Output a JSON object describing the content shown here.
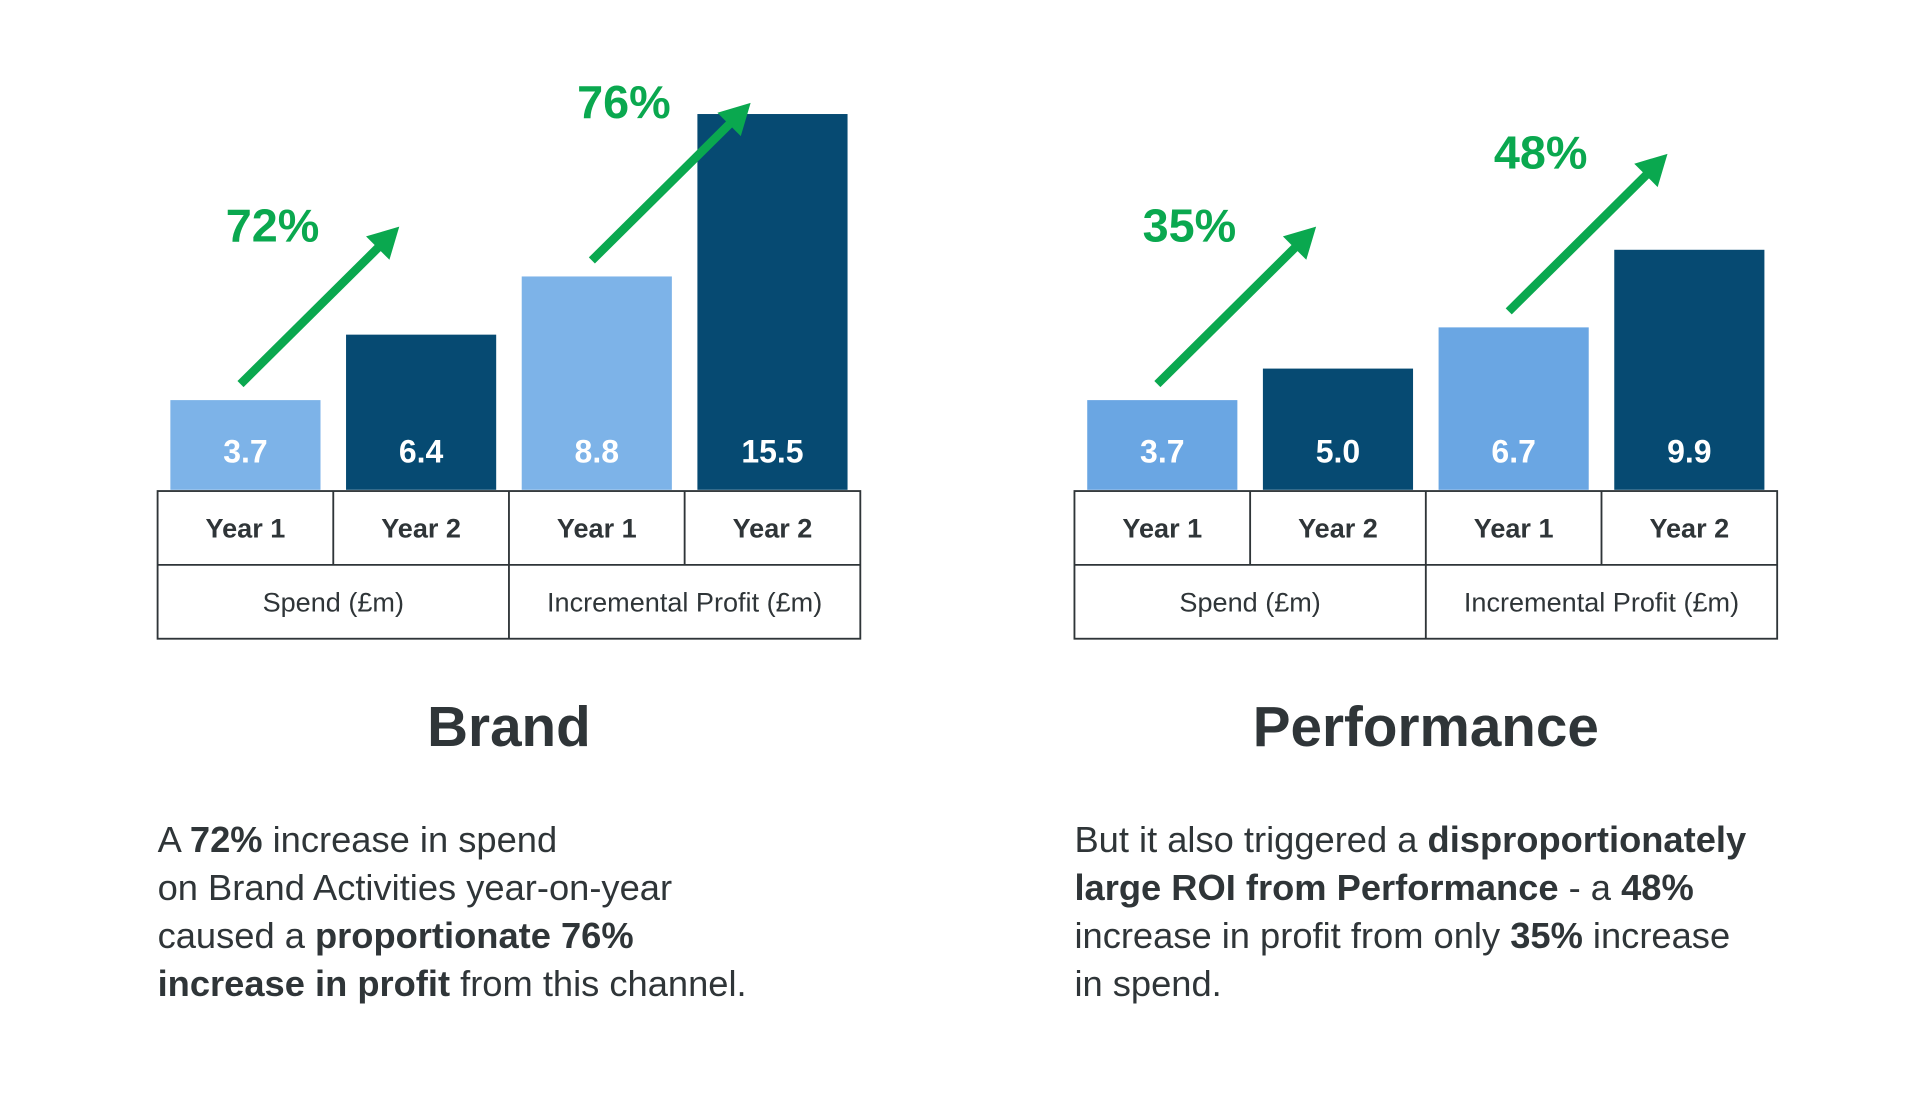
{
  "chart_data": [
    {
      "type": "bar",
      "title": "Brand",
      "categories": [
        "Year 1",
        "Year 2",
        "Year 1",
        "Year 2"
      ],
      "groups": [
        "Spend (£m)",
        "Incremental Profit (£m)"
      ],
      "values": [
        3.7,
        6.4,
        8.8,
        15.5
      ],
      "value_labels": [
        "3.7",
        "6.4",
        "8.8",
        "15.5"
      ],
      "colors": [
        "#7db3e8",
        "#064a72",
        "#7db3e8",
        "#064a72"
      ],
      "annotations": [
        "72%",
        "76%"
      ],
      "annotation_color": "#0aa84f",
      "description": [
        [
          {
            "text": "A ",
            "bold": false
          },
          {
            "text": "72%",
            "bold": true
          },
          {
            "text": " increase in spend",
            "bold": false
          }
        ],
        [
          {
            "text": "on Brand Activities year-on-year",
            "bold": false
          }
        ],
        [
          {
            "text": "caused a ",
            "bold": false
          },
          {
            "text": "proportionate 76%",
            "bold": true
          }
        ],
        [
          {
            "text": "increase in profit",
            "bold": true
          },
          {
            "text": " from this channel.",
            "bold": false
          }
        ]
      ]
    },
    {
      "type": "bar",
      "title": "Performance",
      "categories": [
        "Year 1",
        "Year 2",
        "Year 1",
        "Year 2"
      ],
      "groups": [
        "Spend (£m)",
        "Incremental Profit (£m)"
      ],
      "values": [
        3.7,
        5.0,
        6.7,
        9.9
      ],
      "value_labels": [
        "3.7",
        "5.0",
        "6.7",
        "9.9"
      ],
      "colors": [
        "#6aa6e3",
        "#064a72",
        "#6aa6e3",
        "#064a72"
      ],
      "annotations": [
        "35%",
        "48%"
      ],
      "annotation_color": "#0aa84f",
      "description": [
        [
          {
            "text": "But it also triggered a ",
            "bold": false
          },
          {
            "text": "disproportionately",
            "bold": true
          }
        ],
        [
          {
            "text": "large ROI from Performance",
            "bold": true
          },
          {
            "text": " - a ",
            "bold": false
          },
          {
            "text": "48%",
            "bold": true
          }
        ],
        [
          {
            "text": "increase in profit from only ",
            "bold": false
          },
          {
            "text": "35%",
            "bold": true
          },
          {
            "text": " increase",
            "bold": false
          }
        ],
        [
          {
            "text": "in spend.",
            "bold": false
          }
        ]
      ]
    }
  ]
}
